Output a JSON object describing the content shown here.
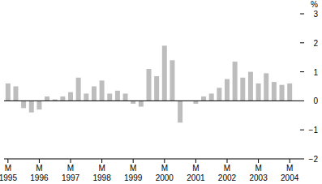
{
  "chart_data": {
    "type": "bar",
    "y_label": "%",
    "categories": [
      "M 1995",
      null,
      null,
      null,
      "M 1996",
      null,
      null,
      null,
      "M 1997",
      null,
      null,
      null,
      "M 1998",
      null,
      null,
      null,
      "M 1999",
      null,
      null,
      null,
      "M 2000",
      null,
      null,
      null,
      "M 2001",
      null,
      null,
      null,
      "M 2002",
      null,
      null,
      null,
      "M 2003",
      null,
      null,
      null,
      "M 2004"
    ],
    "values": [
      0.6,
      0.5,
      -0.25,
      -0.4,
      -0.3,
      0.15,
      0.05,
      0.15,
      0.3,
      0.8,
      0.25,
      0.5,
      0.7,
      0.25,
      0.35,
      0.25,
      -0.1,
      -0.2,
      1.1,
      0.85,
      1.9,
      1.4,
      -0.75,
      0.0,
      -0.1,
      0.15,
      0.25,
      0.45,
      0.75,
      1.35,
      0.8,
      1.0,
      0.6,
      0.95,
      0.65,
      0.55,
      0.6
    ],
    "color": "#bdbdbd",
    "ylim": [
      -2,
      3
    ],
    "yticks": [
      -2,
      -1,
      0,
      1,
      2,
      3
    ],
    "grid": false
  }
}
